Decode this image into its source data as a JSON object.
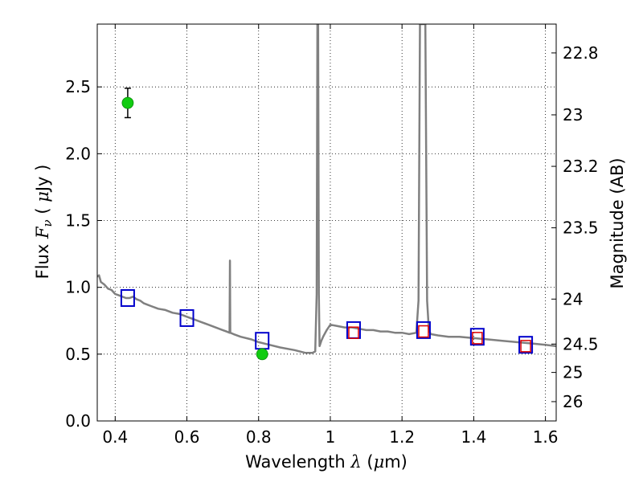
{
  "chart_data": {
    "type": "line",
    "xlabel": "Wavelength λ (μm)",
    "ylabel": "Flux F_ν ( μJy )",
    "y2label": "Magnitude (AB)",
    "xlim": [
      0.35,
      1.63
    ],
    "ylim": [
      0.0,
      2.97
    ],
    "grid": true,
    "x_ticks": [
      0.4,
      0.6,
      0.8,
      1.0,
      1.2,
      1.4,
      1.6
    ],
    "x_tick_labels": [
      "0.4",
      "0.6",
      "0.8",
      "1",
      "1.2",
      "1.4",
      "1.6"
    ],
    "y_ticks": [
      0.0,
      0.5,
      1.0,
      1.5,
      2.0,
      2.5
    ],
    "y_tick_labels": [
      "0.0",
      "0.5",
      "1.0",
      "1.5",
      "2.0",
      "2.5"
    ],
    "y2_ticks": [
      {
        "label": "22.8",
        "value": 22.8
      },
      {
        "label": "23",
        "value": 23.0
      },
      {
        "label": "23.2",
        "value": 23.2
      },
      {
        "label": "23.5",
        "value": 23.5
      },
      {
        "label": "24",
        "value": 24.0
      },
      {
        "label": "24.5",
        "value": 24.5
      },
      {
        "label": "25",
        "value": 25.0
      },
      {
        "label": "26",
        "value": 26.0
      }
    ],
    "series": [
      {
        "kind": "line",
        "color": "#808080",
        "x": [
          0.35,
          0.355,
          0.36,
          0.37,
          0.38,
          0.39,
          0.4,
          0.41,
          0.42,
          0.43,
          0.44,
          0.45,
          0.46,
          0.47,
          0.48,
          0.49,
          0.5,
          0.52,
          0.54,
          0.56,
          0.58,
          0.6,
          0.62,
          0.64,
          0.66,
          0.68,
          0.7,
          0.71,
          0.719,
          0.72,
          0.721,
          0.73,
          0.75,
          0.78,
          0.8,
          0.83,
          0.86,
          0.9,
          0.93,
          0.95,
          0.958,
          0.962,
          0.964,
          0.966,
          0.968,
          0.97,
          0.975,
          0.98,
          0.99,
          1.0,
          1.02,
          1.04,
          1.06,
          1.08,
          1.1,
          1.12,
          1.14,
          1.16,
          1.18,
          1.2,
          1.22,
          1.24,
          1.246,
          1.25,
          1.255,
          1.265,
          1.27,
          1.275,
          1.28,
          1.3,
          1.33,
          1.36,
          1.4,
          1.44,
          1.48,
          1.52,
          1.56,
          1.6,
          1.63
        ],
        "y": [
          1.08,
          1.09,
          1.04,
          1.02,
          0.99,
          0.98,
          0.95,
          0.94,
          0.93,
          0.92,
          0.92,
          0.93,
          0.91,
          0.9,
          0.88,
          0.87,
          0.86,
          0.84,
          0.83,
          0.81,
          0.8,
          0.78,
          0.76,
          0.74,
          0.72,
          0.7,
          0.68,
          0.67,
          0.66,
          1.2,
          0.66,
          0.65,
          0.63,
          0.61,
          0.59,
          0.57,
          0.55,
          0.53,
          0.51,
          0.51,
          0.52,
          0.95,
          2.97,
          2.97,
          0.95,
          0.56,
          0.6,
          0.63,
          0.68,
          0.72,
          0.71,
          0.7,
          0.7,
          0.69,
          0.68,
          0.68,
          0.67,
          0.67,
          0.66,
          0.66,
          0.65,
          0.66,
          0.9,
          2.97,
          2.97,
          2.97,
          0.9,
          0.68,
          0.65,
          0.64,
          0.63,
          0.63,
          0.62,
          0.61,
          0.6,
          0.59,
          0.58,
          0.57,
          0.56
        ]
      },
      {
        "kind": "open-square",
        "color": "#0000cc",
        "x": [
          0.435,
          0.6,
          0.81,
          1.065,
          1.26,
          1.41,
          1.545
        ],
        "y": [
          0.92,
          0.77,
          0.6,
          0.68,
          0.68,
          0.63,
          0.57
        ]
      },
      {
        "kind": "open-square-small",
        "color": "#dd0000",
        "x": [
          1.065,
          1.26,
          1.41,
          1.545
        ],
        "y": [
          0.66,
          0.67,
          0.62,
          0.56
        ]
      },
      {
        "kind": "point-errorbar",
        "color": "#11cc11",
        "x": [
          0.435,
          0.81
        ],
        "y": [
          2.38,
          0.5
        ],
        "yerr": [
          0.11,
          0.03
        ]
      }
    ]
  }
}
